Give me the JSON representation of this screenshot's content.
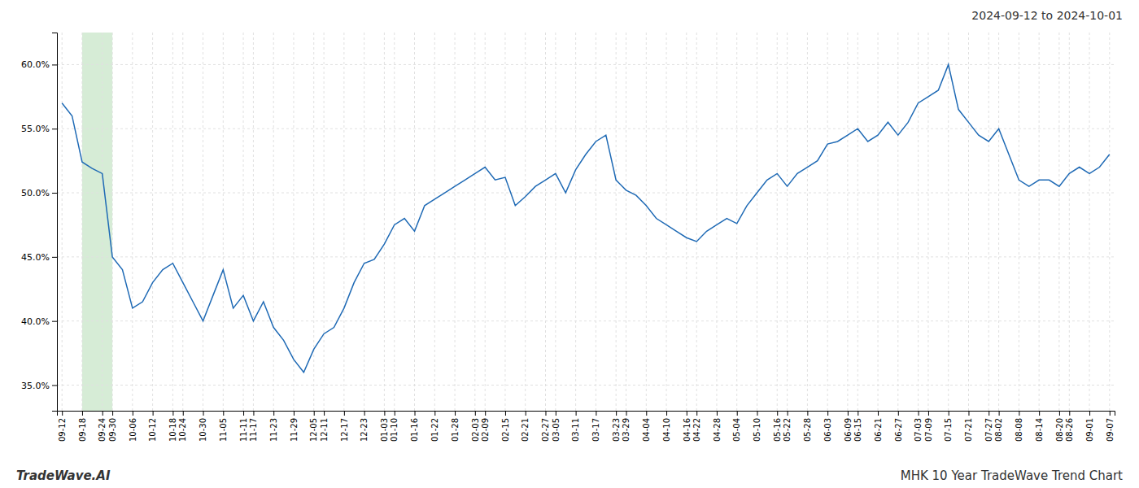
{
  "chart_data": {
    "type": "line",
    "title": "2024-09-12 to 2024-10-01",
    "annotations": [
      "TradeWave.AI",
      "MHK 10 Year TradeWave Trend Chart"
    ],
    "categories": [
      "09-12",
      null,
      "09-18",
      null,
      "09-24",
      "09-30",
      null,
      "10-06",
      null,
      "10-12",
      null,
      "10-18",
      "10-24",
      null,
      "10-30",
      null,
      "11-05",
      null,
      "11-11",
      "11-17",
      null,
      "11-23",
      null,
      "11-29",
      null,
      "12-05",
      "12-11",
      null,
      "12-17",
      null,
      "12-23",
      null,
      "01-03",
      "01-10",
      null,
      "01-16",
      null,
      "01-22",
      null,
      "01-28",
      null,
      "02-03",
      "02-09",
      null,
      "02-15",
      null,
      "02-21",
      null,
      "02-27",
      "03-05",
      null,
      "03-11",
      null,
      "03-17",
      null,
      "03-23",
      "03-29",
      null,
      "04-04",
      null,
      "04-10",
      null,
      "04-16",
      "04-22",
      null,
      "04-28",
      null,
      "05-04",
      null,
      "05-10",
      null,
      "05-16",
      "05-22",
      null,
      "05-28",
      null,
      "06-03",
      null,
      "06-09",
      "06-15",
      null,
      "06-21",
      null,
      "06-27",
      null,
      "07-03",
      "07-09",
      null,
      "07-15",
      null,
      "07-21",
      null,
      "07-27",
      "08-02",
      null,
      "08-08",
      null,
      "08-14",
      null,
      "08-20",
      "08-26",
      null,
      "09-01",
      null,
      "09-07"
    ],
    "values": [
      0.57,
      0.56,
      0.524,
      0.519,
      0.515,
      0.45,
      0.44,
      0.41,
      0.415,
      0.43,
      0.44,
      0.445,
      0.43,
      0.415,
      0.4,
      0.42,
      0.44,
      0.41,
      0.42,
      0.4,
      0.415,
      0.395,
      0.385,
      0.37,
      0.36,
      0.378,
      0.39,
      0.395,
      0.41,
      0.43,
      0.445,
      0.448,
      0.46,
      0.475,
      0.48,
      0.47,
      0.49,
      0.495,
      0.5,
      0.505,
      0.51,
      0.515,
      0.52,
      0.51,
      0.512,
      0.49,
      0.497,
      0.505,
      0.51,
      0.515,
      0.5,
      0.518,
      0.53,
      0.54,
      0.545,
      0.51,
      0.502,
      0.498,
      0.49,
      0.48,
      0.475,
      0.47,
      0.465,
      0.462,
      0.47,
      0.475,
      0.48,
      0.476,
      0.49,
      0.5,
      0.51,
      0.515,
      0.505,
      0.515,
      0.52,
      0.525,
      0.538,
      0.54,
      0.545,
      0.55,
      0.54,
      0.545,
      0.555,
      0.545,
      0.555,
      0.57,
      0.575,
      0.58,
      0.6,
      0.565,
      0.555,
      0.545,
      0.54,
      0.55,
      0.53,
      0.51,
      0.505,
      0.51,
      0.51,
      0.505,
      0.515,
      0.52,
      0.515,
      0.52,
      0.53
    ],
    "color": "#1f6ab5",
    "highlight": {
      "start": "09-18",
      "end": "09-30",
      "color": "#d6ecd6"
    },
    "ylim": [
      0.33,
      0.625
    ],
    "yticks": [
      {
        "value": 0.35,
        "label": "35.0%"
      },
      {
        "value": 0.4,
        "label": "40.0%"
      },
      {
        "value": 0.45,
        "label": "45.0%"
      },
      {
        "value": 0.5,
        "label": "50.0%"
      },
      {
        "value": 0.55,
        "label": "55.0%"
      },
      {
        "value": 0.6,
        "label": "60.0%"
      }
    ],
    "grid": true
  }
}
